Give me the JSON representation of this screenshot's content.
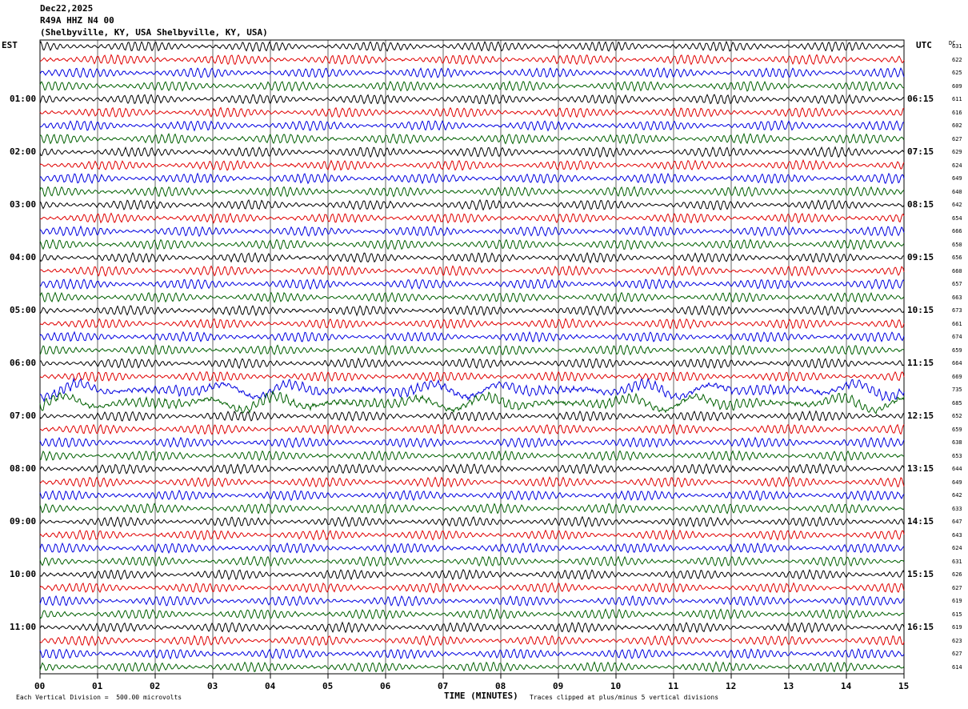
{
  "header": {
    "date": "Dec22,2025",
    "station": "R49A HHZ N4 00",
    "location": "(Shelbyville, KY, USA Shelbyville, KY, USA)"
  },
  "left_tz": "EST",
  "right_tz": "UTC",
  "dc_label": "DC",
  "footer": {
    "scale_note": "Each Vertical Division =  500.00 microvolts",
    "clip_note": "Traces clipped at plus/minus 5 vertical divisions",
    "xaxis_title": "TIME (MINUTES)"
  },
  "chart_data": {
    "type": "line",
    "title": "",
    "xlabel": "TIME (MINUTES)",
    "xlim": [
      0,
      15
    ],
    "x_ticks": [
      "00",
      "01",
      "02",
      "03",
      "04",
      "05",
      "06",
      "07",
      "08",
      "09",
      "10",
      "11",
      "12",
      "13",
      "14",
      "15"
    ],
    "trace_colors": [
      "#000000",
      "#e00000",
      "#0000e0",
      "#006000"
    ],
    "rows_per_hour": 4,
    "left_hour_labels": [
      "01:00",
      "02:00",
      "03:00",
      "04:00",
      "05:00",
      "06:00",
      "07:00",
      "08:00",
      "09:00",
      "10:00",
      "11:00"
    ],
    "right_hour_labels": [
      "06:15",
      "07:15",
      "08:15",
      "09:15",
      "10:15",
      "11:15",
      "12:15",
      "13:15",
      "14:15",
      "15:15",
      "16:15"
    ],
    "dc_offsets": [
      631,
      622,
      625,
      609,
      611,
      616,
      602,
      627,
      629,
      624,
      649,
      640,
      642,
      654,
      666,
      650,
      656,
      660,
      657,
      663,
      673,
      661,
      674,
      659,
      664,
      669,
      735,
      685,
      652,
      659,
      638,
      653,
      644,
      649,
      642,
      633,
      647,
      643,
      624,
      631,
      626,
      627,
      619,
      615,
      619,
      623,
      627,
      614
    ]
  }
}
